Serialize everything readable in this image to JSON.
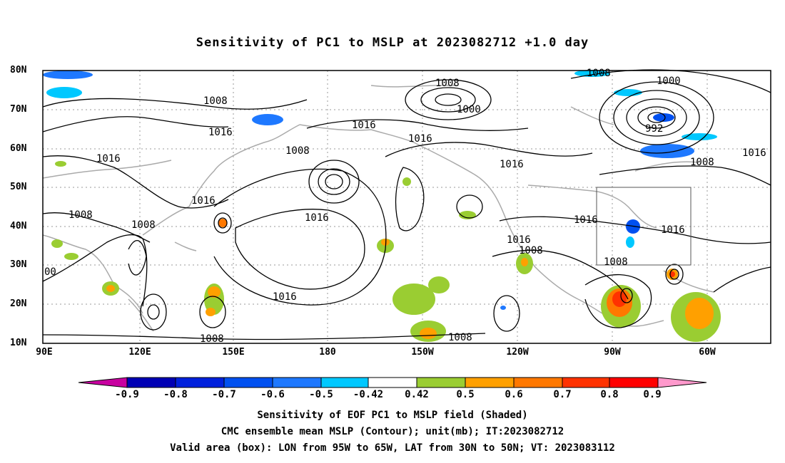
{
  "title": "Sensitivity of PC1 to MSLP at 2023082712 +1.0 day",
  "map": {
    "lat_labels": [
      "80N",
      "70N",
      "60N",
      "50N",
      "40N",
      "30N",
      "20N",
      "10N"
    ],
    "lon_labels": [
      "90E",
      "120E",
      "150E",
      "180",
      "150W",
      "120W",
      "90W",
      "60W"
    ],
    "contour_labels": [
      "1008",
      "1000",
      "1016",
      "1008",
      "1016",
      "1016",
      "1008",
      "1016",
      "1000",
      "992",
      "1008",
      "1016",
      "1016",
      "1008",
      "1008",
      "1016",
      "1016",
      "1008",
      "1016",
      "1008",
      "1016",
      "1008",
      "00",
      "1008"
    ],
    "colors": {
      "frame": "#000000",
      "grid": "#999999",
      "coast": "#aaaaaa",
      "contour": "#000000",
      "box": "#555555"
    }
  },
  "colorbar": {
    "labels": [
      "-0.9",
      "-0.8",
      "-0.7",
      "-0.6",
      "-0.5",
      "-0.42",
      "0.42",
      "0.5",
      "0.6",
      "0.7",
      "0.8",
      "0.9"
    ],
    "colors": [
      "#c800a0",
      "#0000b4",
      "#0020dc",
      "#0050f0",
      "#1e78ff",
      "#00c8ff",
      "#ffffff",
      "#9acd32",
      "#ffa000",
      "#ff7800",
      "#ff3200",
      "#ff0000",
      "#ff99cc"
    ]
  },
  "captions": [
    "Sensitivity of EOF PC1 to MSLP field (Shaded)",
    "CMC ensemble mean MSLP (Contour); unit(mb); IT:2023082712",
    "Valid area (box): LON from 95W to 65W, LAT from 30N to 50N; VT: 2023083112"
  ]
}
